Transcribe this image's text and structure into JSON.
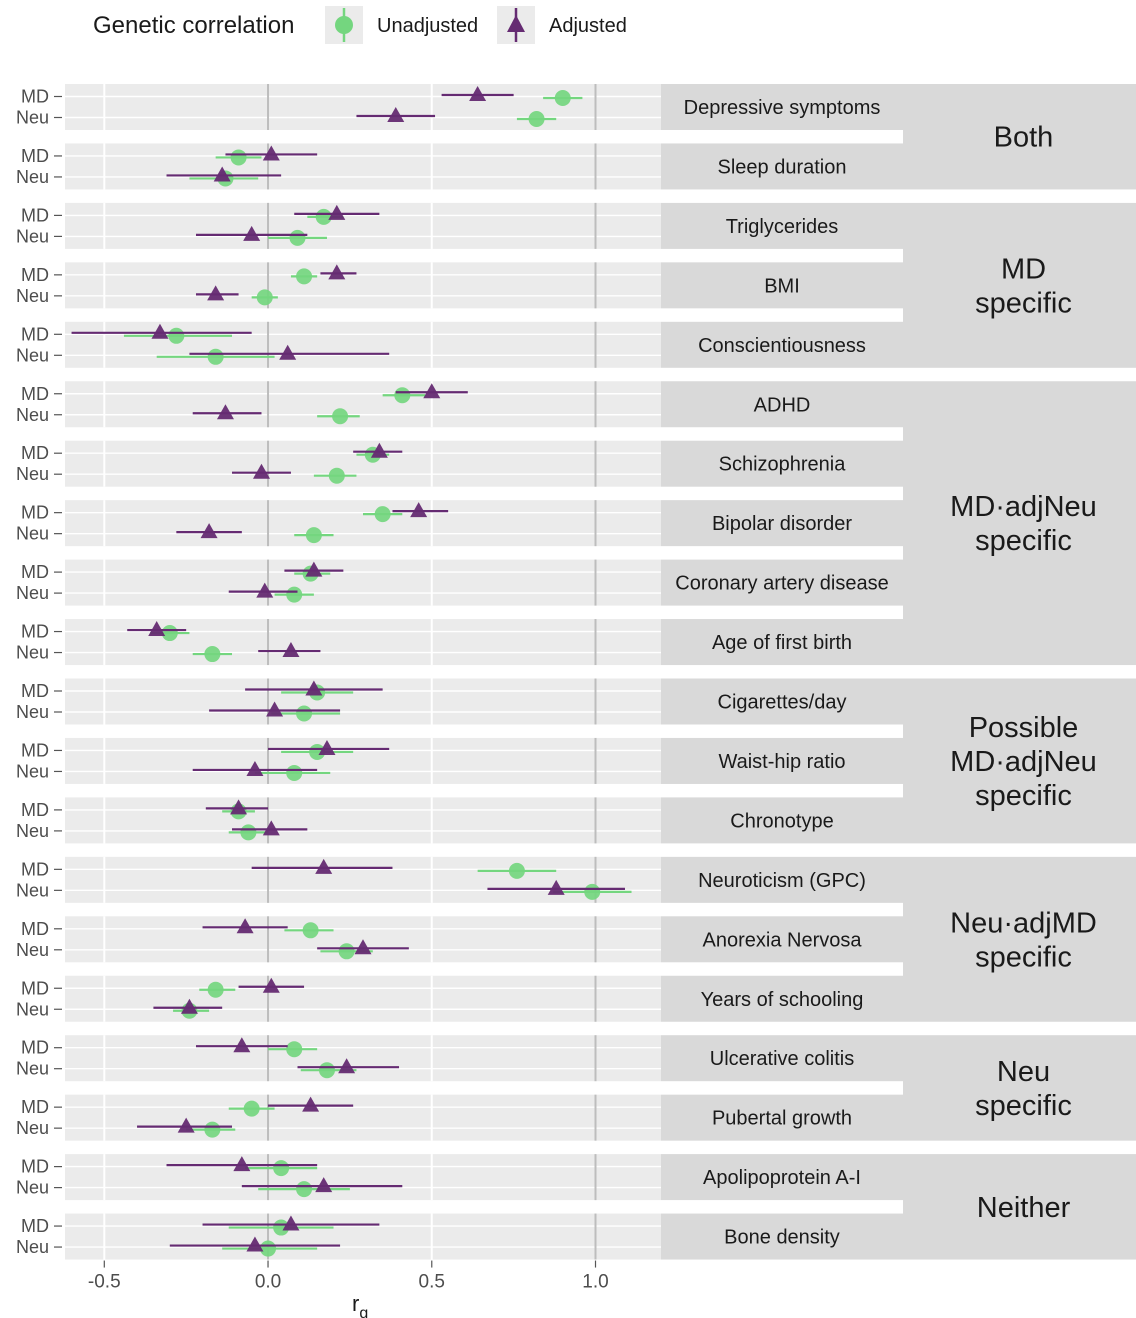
{
  "chart_data": {
    "type": "forest",
    "legend": {
      "title": "Genetic correlation",
      "position": "top",
      "entries": [
        {
          "key": "unadjusted",
          "label": "Unadjusted",
          "marker": "circle",
          "color": "#74d67f"
        },
        {
          "key": "adjusted",
          "label": "Adjusted",
          "marker": "triangle",
          "color": "#652b72"
        }
      ]
    },
    "xlabel_main": "r",
    "xlabel_sub": "g",
    "xlim": [
      -0.62,
      1.2
    ],
    "xticks": [
      -0.5,
      0.0,
      0.5,
      1.0
    ],
    "xtick_labels": [
      "-0.5",
      "0.0",
      "0.5",
      "1.0"
    ],
    "row_labels": [
      "MD",
      "Neu"
    ],
    "grid": true,
    "groups": [
      {
        "lines": [
          "Both"
        ],
        "n_traits": 2
      },
      {
        "lines": [
          "MD",
          "specific"
        ],
        "n_traits": 3
      },
      {
        "lines": [
          "MD·adjNeu",
          "specific"
        ],
        "n_traits": 5
      },
      {
        "lines": [
          "Possible",
          "MD·adjNeu",
          "specific"
        ],
        "n_traits": 3
      },
      {
        "lines": [
          "Neu·adjMD",
          "specific"
        ],
        "n_traits": 3
      },
      {
        "lines": [
          "Neu",
          "specific"
        ],
        "n_traits": 2
      },
      {
        "lines": [
          "Neither"
        ],
        "n_traits": 2
      }
    ],
    "traits": [
      {
        "name": "Depressive symptoms",
        "md": {
          "unadjusted": [
            0.9,
            0.84,
            0.96
          ],
          "adjusted": [
            0.64,
            0.53,
            0.75
          ]
        },
        "neu": {
          "unadjusted": [
            0.82,
            0.76,
            0.88
          ],
          "adjusted": [
            0.39,
            0.27,
            0.51
          ]
        }
      },
      {
        "name": "Sleep duration",
        "md": {
          "unadjusted": [
            -0.09,
            -0.16,
            -0.02
          ],
          "adjusted": [
            0.01,
            -0.13,
            0.15
          ]
        },
        "neu": {
          "unadjusted": [
            -0.13,
            -0.24,
            -0.03
          ],
          "adjusted": [
            -0.14,
            -0.31,
            0.04
          ]
        }
      },
      {
        "name": "Triglycerides",
        "md": {
          "unadjusted": [
            0.17,
            0.12,
            0.23
          ],
          "adjusted": [
            0.21,
            0.08,
            0.34
          ]
        },
        "neu": {
          "unadjusted": [
            0.09,
            0.0,
            0.18
          ],
          "adjusted": [
            -0.05,
            -0.22,
            0.12
          ]
        }
      },
      {
        "name": "BMI",
        "md": {
          "unadjusted": [
            0.11,
            0.07,
            0.15
          ],
          "adjusted": [
            0.21,
            0.16,
            0.27
          ]
        },
        "neu": {
          "unadjusted": [
            -0.01,
            -0.05,
            0.03
          ],
          "adjusted": [
            -0.16,
            -0.22,
            -0.09
          ]
        }
      },
      {
        "name": "Conscientiousness",
        "md": {
          "unadjusted": [
            -0.28,
            -0.44,
            -0.11
          ],
          "adjusted": [
            -0.33,
            -0.6,
            -0.05
          ]
        },
        "neu": {
          "unadjusted": [
            -0.16,
            -0.34,
            0.02
          ],
          "adjusted": [
            0.06,
            -0.24,
            0.37
          ]
        }
      },
      {
        "name": "ADHD",
        "md": {
          "unadjusted": [
            0.41,
            0.35,
            0.48
          ],
          "adjusted": [
            0.5,
            0.39,
            0.61
          ]
        },
        "neu": {
          "unadjusted": [
            0.22,
            0.15,
            0.28
          ],
          "adjusted": [
            -0.13,
            -0.23,
            -0.02
          ]
        }
      },
      {
        "name": "Schizophrenia",
        "md": {
          "unadjusted": [
            0.32,
            0.27,
            0.37
          ],
          "adjusted": [
            0.34,
            0.26,
            0.41
          ]
        },
        "neu": {
          "unadjusted": [
            0.21,
            0.14,
            0.27
          ],
          "adjusted": [
            -0.02,
            -0.11,
            0.07
          ]
        }
      },
      {
        "name": "Bipolar disorder",
        "md": {
          "unadjusted": [
            0.35,
            0.29,
            0.41
          ],
          "adjusted": [
            0.46,
            0.38,
            0.55
          ]
        },
        "neu": {
          "unadjusted": [
            0.14,
            0.08,
            0.2
          ],
          "adjusted": [
            -0.18,
            -0.28,
            -0.08
          ]
        }
      },
      {
        "name": "Coronary artery disease",
        "md": {
          "unadjusted": [
            0.13,
            0.08,
            0.19
          ],
          "adjusted": [
            0.14,
            0.05,
            0.23
          ]
        },
        "neu": {
          "unadjusted": [
            0.08,
            0.02,
            0.14
          ],
          "adjusted": [
            -0.01,
            -0.12,
            0.09
          ]
        }
      },
      {
        "name": "Age of first birth",
        "md": {
          "unadjusted": [
            -0.3,
            -0.36,
            -0.24
          ],
          "adjusted": [
            -0.34,
            -0.43,
            -0.25
          ]
        },
        "neu": {
          "unadjusted": [
            -0.17,
            -0.23,
            -0.11
          ],
          "adjusted": [
            0.07,
            -0.03,
            0.16
          ]
        }
      },
      {
        "name": "Cigarettes/day",
        "md": {
          "unadjusted": [
            0.15,
            0.04,
            0.26
          ],
          "adjusted": [
            0.14,
            -0.07,
            0.35
          ]
        },
        "neu": {
          "unadjusted": [
            0.11,
            0.01,
            0.22
          ],
          "adjusted": [
            0.02,
            -0.18,
            0.22
          ]
        }
      },
      {
        "name": "Waist-hip ratio",
        "md": {
          "unadjusted": [
            0.15,
            0.04,
            0.26
          ],
          "adjusted": [
            0.18,
            0.0,
            0.37
          ]
        },
        "neu": {
          "unadjusted": [
            0.08,
            -0.04,
            0.19
          ],
          "adjusted": [
            -0.04,
            -0.23,
            0.15
          ]
        }
      },
      {
        "name": "Chronotype",
        "md": {
          "unadjusted": [
            -0.09,
            -0.14,
            -0.04
          ],
          "adjusted": [
            -0.09,
            -0.19,
            0.0
          ]
        },
        "neu": {
          "unadjusted": [
            -0.06,
            -0.12,
            0.0
          ],
          "adjusted": [
            0.01,
            -0.11,
            0.12
          ]
        }
      },
      {
        "name": "Neuroticism (GPC)",
        "md": {
          "unadjusted": [
            0.76,
            0.64,
            0.88
          ],
          "adjusted": [
            0.17,
            -0.05,
            0.38
          ]
        },
        "neu": {
          "unadjusted": [
            0.99,
            0.87,
            1.11
          ],
          "adjusted": [
            0.88,
            0.67,
            1.09
          ]
        }
      },
      {
        "name": "Anorexia Nervosa",
        "md": {
          "unadjusted": [
            0.13,
            0.05,
            0.2
          ],
          "adjusted": [
            -0.07,
            -0.2,
            0.06
          ]
        },
        "neu": {
          "unadjusted": [
            0.24,
            0.16,
            0.32
          ],
          "adjusted": [
            0.29,
            0.15,
            0.43
          ]
        }
      },
      {
        "name": "Years of schooling",
        "md": {
          "unadjusted": [
            -0.16,
            -0.21,
            -0.1
          ],
          "adjusted": [
            0.01,
            -0.09,
            0.11
          ]
        },
        "neu": {
          "unadjusted": [
            -0.24,
            -0.29,
            -0.18
          ],
          "adjusted": [
            -0.24,
            -0.35,
            -0.14
          ]
        }
      },
      {
        "name": "Ulcerative colitis",
        "md": {
          "unadjusted": [
            0.08,
            0.0,
            0.15
          ],
          "adjusted": [
            -0.08,
            -0.22,
            0.06
          ]
        },
        "neu": {
          "unadjusted": [
            0.18,
            0.1,
            0.27
          ],
          "adjusted": [
            0.24,
            0.09,
            0.4
          ]
        }
      },
      {
        "name": "Pubertal growth",
        "md": {
          "unadjusted": [
            -0.05,
            -0.12,
            0.02
          ],
          "adjusted": [
            0.13,
            0.0,
            0.26
          ]
        },
        "neu": {
          "unadjusted": [
            -0.17,
            -0.25,
            -0.1
          ],
          "adjusted": [
            -0.25,
            -0.4,
            -0.11
          ]
        }
      },
      {
        "name": "Apolipoprotein A-I",
        "md": {
          "unadjusted": [
            0.04,
            -0.07,
            0.15
          ],
          "adjusted": [
            -0.08,
            -0.31,
            0.15
          ]
        },
        "neu": {
          "unadjusted": [
            0.11,
            -0.03,
            0.25
          ],
          "adjusted": [
            0.17,
            -0.08,
            0.41
          ]
        }
      },
      {
        "name": "Bone density",
        "md": {
          "unadjusted": [
            0.04,
            -0.12,
            0.2
          ],
          "adjusted": [
            0.07,
            -0.2,
            0.34
          ]
        },
        "neu": {
          "unadjusted": [
            0.0,
            -0.14,
            0.15
          ],
          "adjusted": [
            -0.04,
            -0.3,
            0.22
          ]
        }
      }
    ]
  }
}
